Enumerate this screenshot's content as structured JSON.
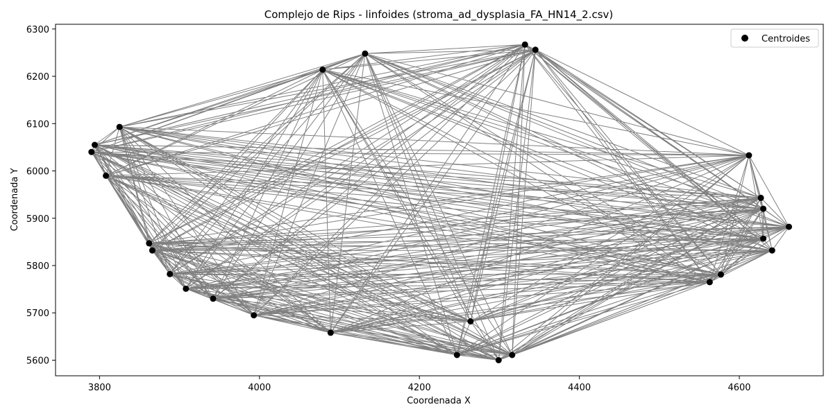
{
  "chart_data": {
    "type": "scatter",
    "title": "Complejo de Rips - linfoides (stroma_ad_dysplasia_FA_HN14_2.csv)",
    "xlabel": "Coordenada X",
    "ylabel": "Coordenada Y",
    "xlim": [
      3745,
      4705
    ],
    "ylim": [
      5567,
      6310
    ],
    "xticks": [
      3800,
      4000,
      4200,
      4400,
      4600
    ],
    "yticks": [
      5600,
      5700,
      5800,
      5900,
      6000,
      6100,
      6200,
      6300
    ],
    "grid": false,
    "legend": {
      "position": "top-right",
      "entries": [
        "Centroides"
      ]
    },
    "colors": {
      "points": "#000000",
      "edges": "#808080"
    },
    "series": [
      {
        "name": "Centroides",
        "x": [
          3790,
          3794,
          3808,
          3825,
          3862,
          3866,
          3888,
          3908,
          3942,
          3993,
          4089,
          4079,
          4132,
          4247,
          4264,
          4299,
          4316,
          4332,
          4345,
          4563,
          4577,
          4612,
          4627,
          4630,
          4630,
          4641,
          4662
        ],
        "y": [
          6040,
          6055,
          5990,
          6093,
          5847,
          5832,
          5782,
          5751,
          5730,
          5695,
          5658,
          6214,
          6248,
          5611,
          5682,
          5600,
          5611,
          6267,
          6256,
          5765,
          5781,
          6033,
          5943,
          5857,
          5920,
          5832,
          5882
        ]
      }
    ]
  }
}
